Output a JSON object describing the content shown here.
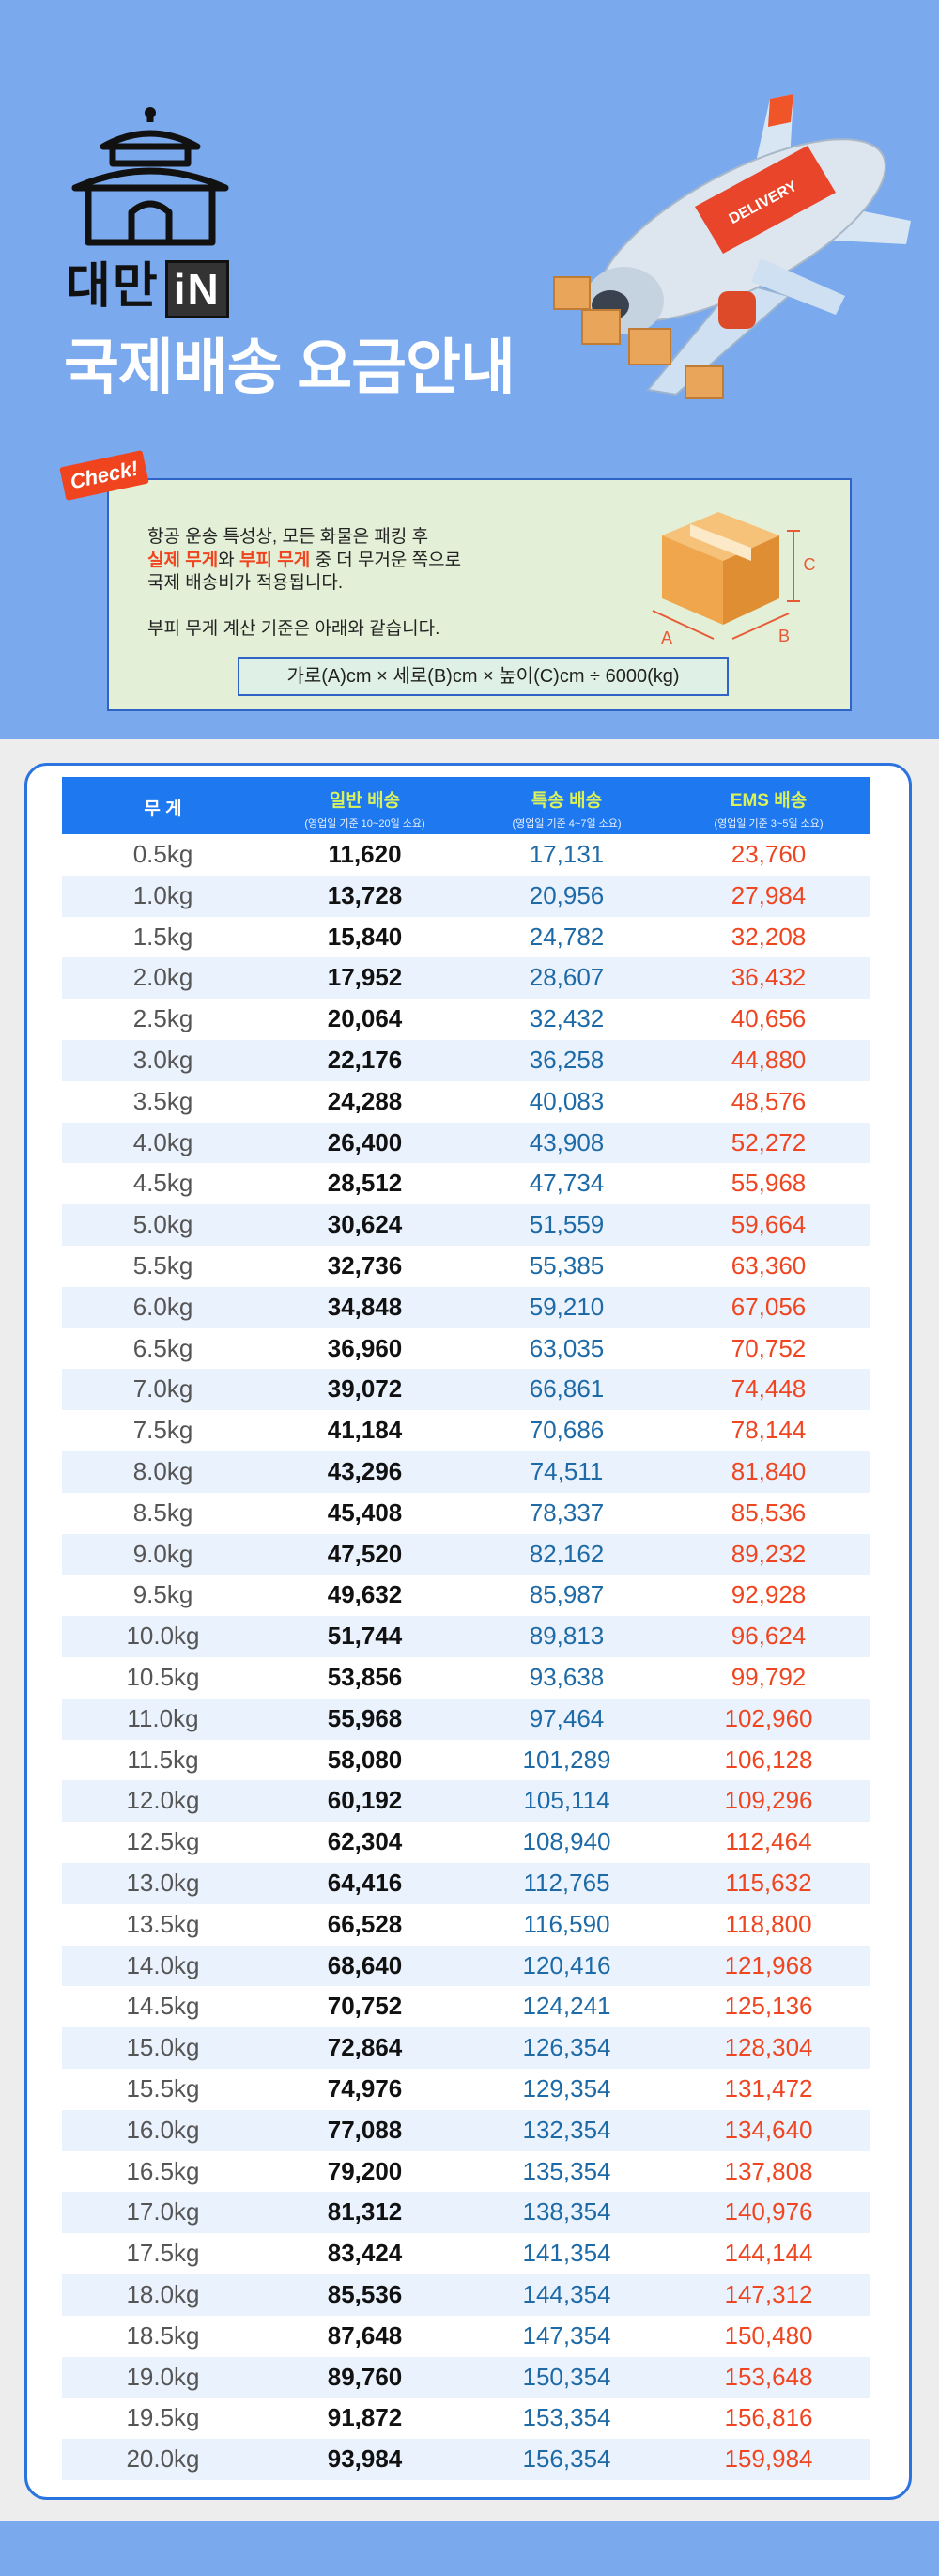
{
  "header": {
    "logo_text": "대만",
    "logo_badge": "iN",
    "title": "국제배송 요금안내",
    "plane_label": "DELIVERY"
  },
  "notice": {
    "tag": "Check!",
    "line1": "항공 운송 특성상, 모든 화물은 패킹 후",
    "line2": [
      "실제 무게",
      "와 ",
      "부피 무게",
      " 중 더 무거운 쪽으로"
    ],
    "line3": "국제 배송비가 적용됩니다.",
    "line4": "부피 무게 계산 기준은 아래와 같습니다.",
    "formula": "가로(A)cm × 세로(B)cm × 높이(C)cm ÷ 6000(kg)",
    "box_labels": [
      "A",
      "B",
      "C"
    ]
  },
  "table": {
    "columns": [
      {
        "name": "무 게"
      },
      {
        "name": "일반 배송",
        "sub": "(영업일 기준 10~20일 소요)"
      },
      {
        "name": "특송 배송",
        "sub": "(영업일 기준 4~7일 소요)"
      },
      {
        "name": "EMS 배송",
        "sub": "(영업일 기준 3~5일 소요)"
      }
    ],
    "rows": [
      [
        "0.5kg",
        "11,620",
        "17,131",
        "23,760"
      ],
      [
        "1.0kg",
        "13,728",
        "20,956",
        "27,984"
      ],
      [
        "1.5kg",
        "15,840",
        "24,782",
        "32,208"
      ],
      [
        "2.0kg",
        "17,952",
        "28,607",
        "36,432"
      ],
      [
        "2.5kg",
        "20,064",
        "32,432",
        "40,656"
      ],
      [
        "3.0kg",
        "22,176",
        "36,258",
        "44,880"
      ],
      [
        "3.5kg",
        "24,288",
        "40,083",
        "48,576"
      ],
      [
        "4.0kg",
        "26,400",
        "43,908",
        "52,272"
      ],
      [
        "4.5kg",
        "28,512",
        "47,734",
        "55,968"
      ],
      [
        "5.0kg",
        "30,624",
        "51,559",
        "59,664"
      ],
      [
        "5.5kg",
        "32,736",
        "55,385",
        "63,360"
      ],
      [
        "6.0kg",
        "34,848",
        "59,210",
        "67,056"
      ],
      [
        "6.5kg",
        "36,960",
        "63,035",
        "70,752"
      ],
      [
        "7.0kg",
        "39,072",
        "66,861",
        "74,448"
      ],
      [
        "7.5kg",
        "41,184",
        "70,686",
        "78,144"
      ],
      [
        "8.0kg",
        "43,296",
        "74,511",
        "81,840"
      ],
      [
        "8.5kg",
        "45,408",
        "78,337",
        "85,536"
      ],
      [
        "9.0kg",
        "47,520",
        "82,162",
        "89,232"
      ],
      [
        "9.5kg",
        "49,632",
        "85,987",
        "92,928"
      ],
      [
        "10.0kg",
        "51,744",
        "89,813",
        "96,624"
      ],
      [
        "10.5kg",
        "53,856",
        "93,638",
        "99,792"
      ],
      [
        "11.0kg",
        "55,968",
        "97,464",
        "102,960"
      ],
      [
        "11.5kg",
        "58,080",
        "101,289",
        "106,128"
      ],
      [
        "12.0kg",
        "60,192",
        "105,114",
        "109,296"
      ],
      [
        "12.5kg",
        "62,304",
        "108,940",
        "112,464"
      ],
      [
        "13.0kg",
        "64,416",
        "112,765",
        "115,632"
      ],
      [
        "13.5kg",
        "66,528",
        "116,590",
        "118,800"
      ],
      [
        "14.0kg",
        "68,640",
        "120,416",
        "121,968"
      ],
      [
        "14.5kg",
        "70,752",
        "124,241",
        "125,136"
      ],
      [
        "15.0kg",
        "72,864",
        "126,354",
        "128,304"
      ],
      [
        "15.5kg",
        "74,976",
        "129,354",
        "131,472"
      ],
      [
        "16.0kg",
        "77,088",
        "132,354",
        "134,640"
      ],
      [
        "16.5kg",
        "79,200",
        "135,354",
        "137,808"
      ],
      [
        "17.0kg",
        "81,312",
        "138,354",
        "140,976"
      ],
      [
        "17.5kg",
        "83,424",
        "141,354",
        "144,144"
      ],
      [
        "18.0kg",
        "85,536",
        "144,354",
        "147,312"
      ],
      [
        "18.5kg",
        "87,648",
        "147,354",
        "150,480"
      ],
      [
        "19.0kg",
        "89,760",
        "150,354",
        "153,648"
      ],
      [
        "19.5kg",
        "91,872",
        "153,354",
        "156,816"
      ],
      [
        "20.0kg",
        "93,984",
        "156,354",
        "159,984"
      ]
    ]
  }
}
